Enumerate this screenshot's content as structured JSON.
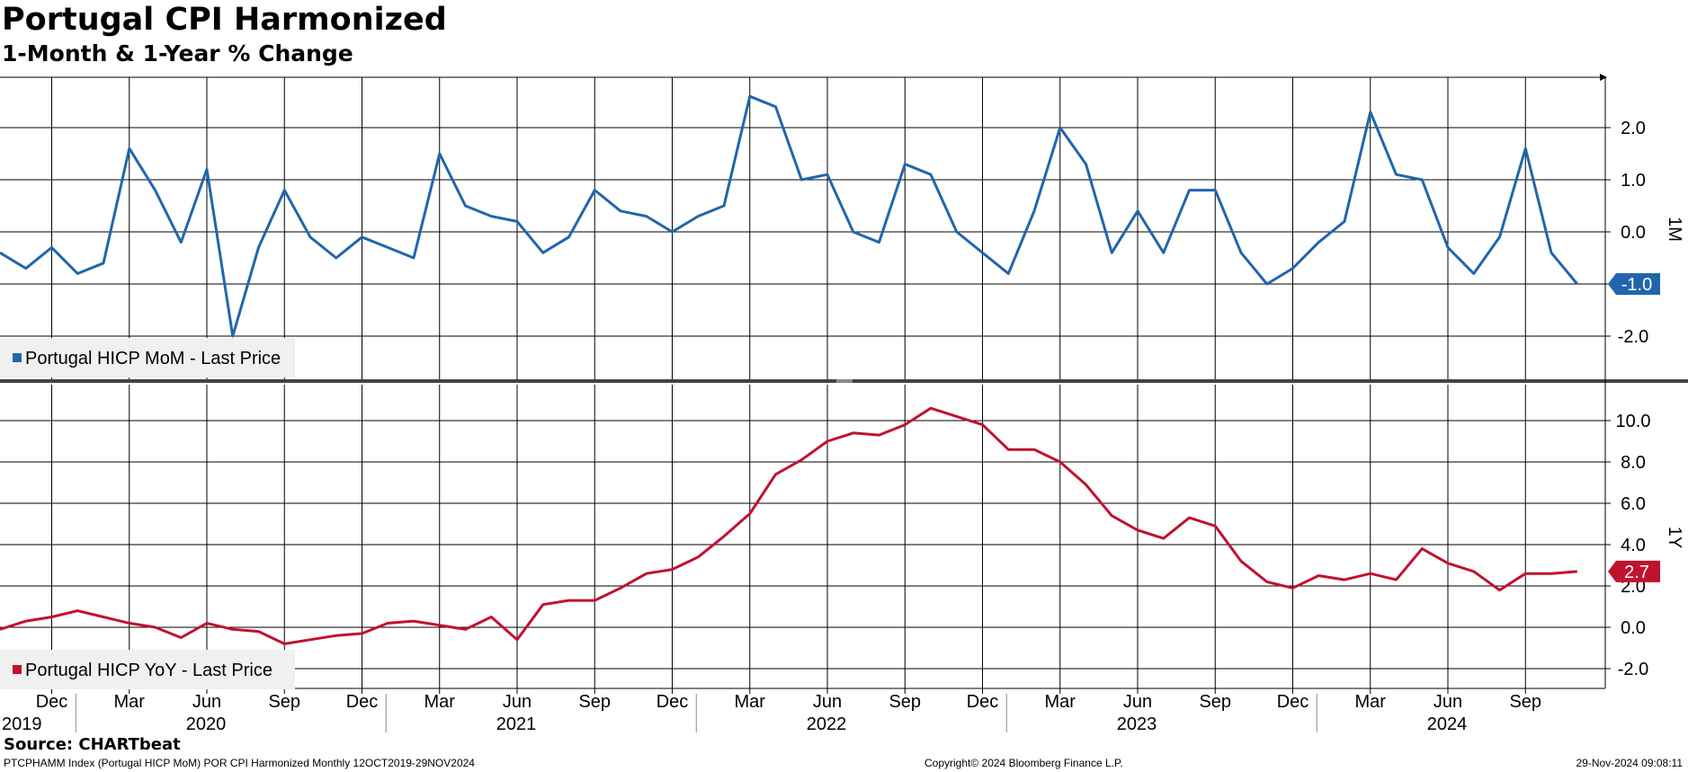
{
  "header": {
    "title": "Portugal CPI Harmonized",
    "subtitle": "1-Month & 1-Year % Change"
  },
  "footer": {
    "source": "Source: CHARTbeat",
    "description": "PTCPHAMM Index (Portugal HICP MoM) POR CPI Harmonized  Monthly 12OCT2019-29NOV2024",
    "copyright": "Copyright© 2024 Bloomberg Finance L.P.",
    "timestamp": "29-Nov-2024 09:08:11"
  },
  "colors": {
    "mom": "#2166ac",
    "yoy": "#c0122f",
    "grid": "#000000",
    "divider": "#444444",
    "legend_bg": "#f0f0f0"
  },
  "chart_data": [
    {
      "type": "line",
      "panel_label": "1M",
      "series": [
        {
          "name": "Portugal HICP MoM - Last Price",
          "color": "#2166ac",
          "values": [
            -0.4,
            -0.7,
            -0.3,
            -0.8,
            -0.6,
            1.6,
            0.8,
            -0.2,
            1.2,
            -2.0,
            -0.3,
            0.8,
            -0.1,
            -0.5,
            -0.1,
            -0.3,
            -0.5,
            1.5,
            0.5,
            0.3,
            0.2,
            -0.4,
            -0.1,
            0.8,
            0.4,
            0.3,
            0.0,
            0.3,
            0.5,
            2.6,
            2.4,
            1.0,
            1.1,
            0.0,
            -0.2,
            1.3,
            1.1,
            0.0,
            -0.4,
            -0.8,
            0.4,
            2.0,
            1.3,
            -0.4,
            0.4,
            -0.4,
            0.8,
            0.8,
            -0.4,
            -1.0,
            -0.7,
            -0.2,
            0.2,
            2.3,
            1.1,
            1.0,
            -0.3,
            -0.8,
            -0.1,
            1.6,
            -0.4,
            -1.0
          ]
        }
      ],
      "last_value_label": "-1.0",
      "yticks": [
        "2.0",
        "1.0",
        "0.0",
        "-1.0",
        "-2.0"
      ],
      "ylim": [
        -2.9,
        3.0
      ]
    },
    {
      "type": "line",
      "panel_label": "1Y",
      "series": [
        {
          "name": "Portugal HICP YoY - Last Price",
          "color": "#c0122f",
          "values": [
            -0.1,
            0.3,
            0.5,
            0.8,
            0.5,
            0.2,
            0.0,
            -0.5,
            0.2,
            -0.1,
            -0.2,
            -0.8,
            -0.6,
            -0.4,
            -0.3,
            0.2,
            0.3,
            0.1,
            -0.1,
            0.5,
            -0.6,
            1.1,
            1.3,
            1.3,
            1.9,
            2.6,
            2.8,
            3.4,
            4.4,
            5.5,
            7.4,
            8.1,
            9.0,
            9.4,
            9.3,
            9.8,
            10.6,
            10.2,
            9.8,
            8.6,
            8.6,
            8.0,
            6.9,
            5.4,
            4.7,
            4.3,
            5.3,
            4.9,
            3.2,
            2.2,
            1.9,
            2.5,
            2.3,
            2.6,
            2.3,
            3.8,
            3.1,
            2.7,
            1.8,
            2.6,
            2.6,
            2.7
          ]
        }
      ],
      "last_value_label": "2.7",
      "yticks": [
        "10.0",
        "8.0",
        "6.0",
        "4.0",
        "2.0",
        "0.0",
        "-2.0"
      ],
      "ylim": [
        -2.9,
        11.5
      ]
    }
  ],
  "x_axis": {
    "month_ticks": [
      "Dec",
      "Mar",
      "Jun",
      "Sep",
      "Dec",
      "Mar",
      "Jun",
      "Sep",
      "Dec",
      "Mar",
      "Jun",
      "Sep",
      "Dec",
      "Mar",
      "Jun",
      "Sep",
      "Dec",
      "Mar",
      "Jun",
      "Sep"
    ],
    "month_tick_index": [
      2,
      5,
      8,
      11,
      14,
      17,
      20,
      23,
      26,
      29,
      32,
      35,
      38,
      41,
      44,
      47,
      50,
      53,
      56,
      59
    ],
    "years": [
      "2019",
      "2020",
      "2021",
      "2022",
      "2023",
      "2024"
    ],
    "year_center_index": [
      0,
      8,
      20,
      32,
      44,
      56
    ],
    "year_boundary_index": [
      3,
      15,
      27,
      39,
      51
    ]
  }
}
